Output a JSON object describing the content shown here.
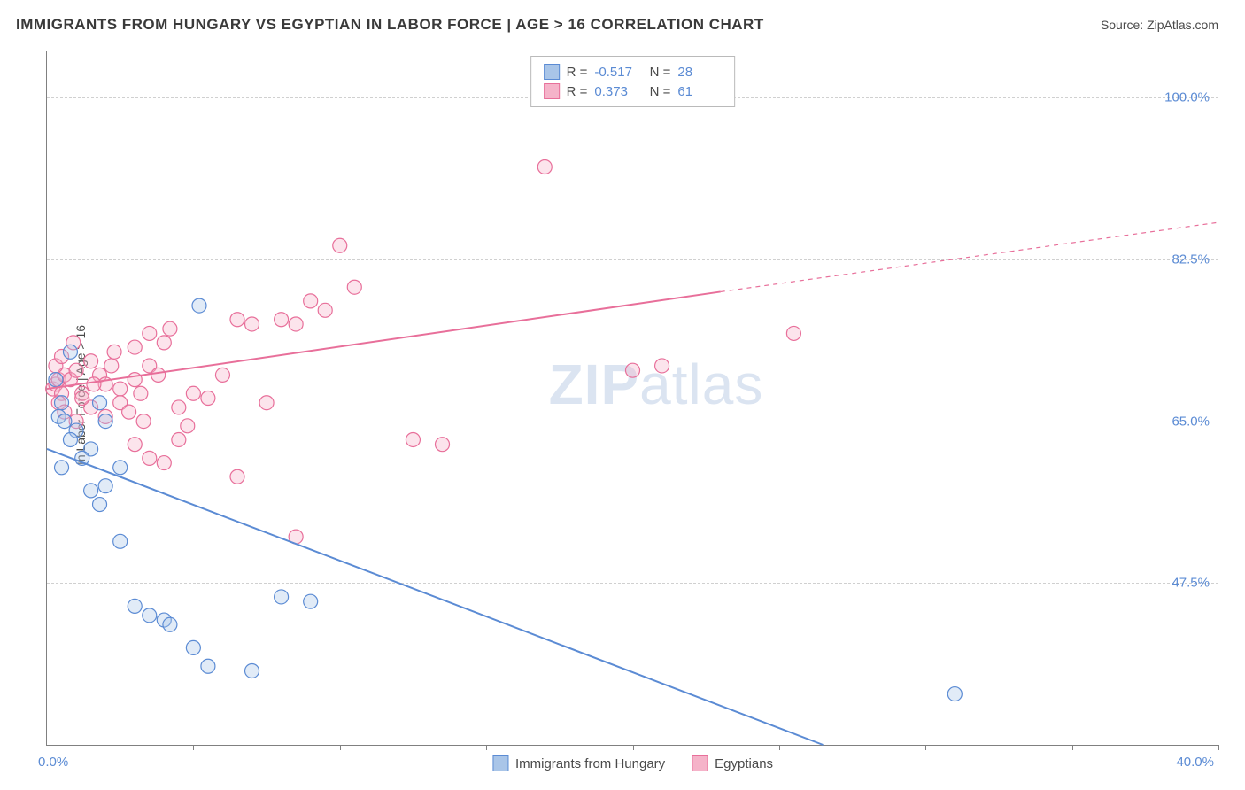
{
  "title": "IMMIGRANTS FROM HUNGARY VS EGYPTIAN IN LABOR FORCE | AGE > 16 CORRELATION CHART",
  "source": "Source: ZipAtlas.com",
  "y_axis_label": "In Labor Force | Age > 16",
  "watermark_bold": "ZIP",
  "watermark_light": "atlas",
  "chart": {
    "type": "scatter",
    "background_color": "#ffffff",
    "grid_color": "#d0d0d0",
    "axis_color": "#808080",
    "text_color": "#4a4a4a",
    "value_color": "#5b8bd4",
    "xlim": [
      0,
      40
    ],
    "ylim": [
      30,
      105
    ],
    "x_ticks": [
      0,
      5,
      10,
      15,
      20,
      25,
      30,
      35,
      40
    ],
    "x_labels": {
      "min": "0.0%",
      "max": "40.0%"
    },
    "y_gridlines": [
      47.5,
      65.0,
      82.5,
      100.0
    ],
    "y_labels": [
      "47.5%",
      "65.0%",
      "82.5%",
      "100.0%"
    ],
    "marker_radius": 8,
    "marker_stroke_width": 1.2,
    "marker_fill_opacity": 0.35,
    "line_width": 2,
    "series": [
      {
        "name": "Immigrants from Hungary",
        "name_short": "hungary",
        "color_stroke": "#5b8bd4",
        "color_fill": "#a9c5e8",
        "R": "-0.517",
        "N": "28",
        "points": [
          [
            0.3,
            69.5
          ],
          [
            0.5,
            67.0
          ],
          [
            0.4,
            65.5
          ],
          [
            0.6,
            65.0
          ],
          [
            0.8,
            72.5
          ],
          [
            1.0,
            64.0
          ],
          [
            1.5,
            62.0
          ],
          [
            1.2,
            61.0
          ],
          [
            0.5,
            60.0
          ],
          [
            0.8,
            63.0
          ],
          [
            1.8,
            67.0
          ],
          [
            2.0,
            65.0
          ],
          [
            2.5,
            60.0
          ],
          [
            2.0,
            58.0
          ],
          [
            1.5,
            57.5
          ],
          [
            1.8,
            56.0
          ],
          [
            5.2,
            77.5
          ],
          [
            2.5,
            52.0
          ],
          [
            3.0,
            45.0
          ],
          [
            3.5,
            44.0
          ],
          [
            4.0,
            43.5
          ],
          [
            4.2,
            43.0
          ],
          [
            5.0,
            40.5
          ],
          [
            5.5,
            38.5
          ],
          [
            7.0,
            38.0
          ],
          [
            8.0,
            46.0
          ],
          [
            9.0,
            45.5
          ],
          [
            31.0,
            35.5
          ]
        ],
        "trend": {
          "x1": 0,
          "y1": 62.0,
          "x2": 26.5,
          "y2": 30.0,
          "dash_from_x": 26.5
        }
      },
      {
        "name": "Egyptians",
        "name_short": "egyptians",
        "color_stroke": "#e86f9a",
        "color_fill": "#f5b3c9",
        "R": "0.373",
        "N": "61",
        "points": [
          [
            0.2,
            68.5
          ],
          [
            0.3,
            69.0
          ],
          [
            0.4,
            69.5
          ],
          [
            0.5,
            68.0
          ],
          [
            0.6,
            70.0
          ],
          [
            0.8,
            69.5
          ],
          [
            1.0,
            70.5
          ],
          [
            1.2,
            68.0
          ],
          [
            0.3,
            71.0
          ],
          [
            0.5,
            72.0
          ],
          [
            1.5,
            71.5
          ],
          [
            1.8,
            70.0
          ],
          [
            2.0,
            69.0
          ],
          [
            2.2,
            71.0
          ],
          [
            2.5,
            68.5
          ],
          [
            0.4,
            67.0
          ],
          [
            0.6,
            66.0
          ],
          [
            1.0,
            65.0
          ],
          [
            1.5,
            66.5
          ],
          [
            2.0,
            65.5
          ],
          [
            2.5,
            67.0
          ],
          [
            3.0,
            69.5
          ],
          [
            3.2,
            68.0
          ],
          [
            3.5,
            71.0
          ],
          [
            3.8,
            70.0
          ],
          [
            4.0,
            73.5
          ],
          [
            4.2,
            75.0
          ],
          [
            3.0,
            73.0
          ],
          [
            3.5,
            74.5
          ],
          [
            4.5,
            66.5
          ],
          [
            5.0,
            68.0
          ],
          [
            5.5,
            67.5
          ],
          [
            6.0,
            70.0
          ],
          [
            6.5,
            76.0
          ],
          [
            7.0,
            75.5
          ],
          [
            7.5,
            67.0
          ],
          [
            8.0,
            76.0
          ],
          [
            8.5,
            75.5
          ],
          [
            9.0,
            78.0
          ],
          [
            9.5,
            77.0
          ],
          [
            10.0,
            84.0
          ],
          [
            10.5,
            79.5
          ],
          [
            3.0,
            62.5
          ],
          [
            3.5,
            61.0
          ],
          [
            4.0,
            60.5
          ],
          [
            4.5,
            63.0
          ],
          [
            4.8,
            64.5
          ],
          [
            6.5,
            59.0
          ],
          [
            8.5,
            52.5
          ],
          [
            12.5,
            63.0
          ],
          [
            13.5,
            62.5
          ],
          [
            17.0,
            92.5
          ],
          [
            20.0,
            70.5
          ],
          [
            21.0,
            71.0
          ],
          [
            25.5,
            74.5
          ],
          [
            1.2,
            67.5
          ],
          [
            1.6,
            69.0
          ],
          [
            2.3,
            72.5
          ],
          [
            2.8,
            66.0
          ],
          [
            3.3,
            65.0
          ],
          [
            0.9,
            73.5
          ]
        ],
        "trend": {
          "x1": 0,
          "y1": 68.5,
          "x2": 23.0,
          "y2": 79.0,
          "dash_from_x": 23.0,
          "dash_x2": 40.0,
          "dash_y2": 86.5
        }
      }
    ]
  }
}
